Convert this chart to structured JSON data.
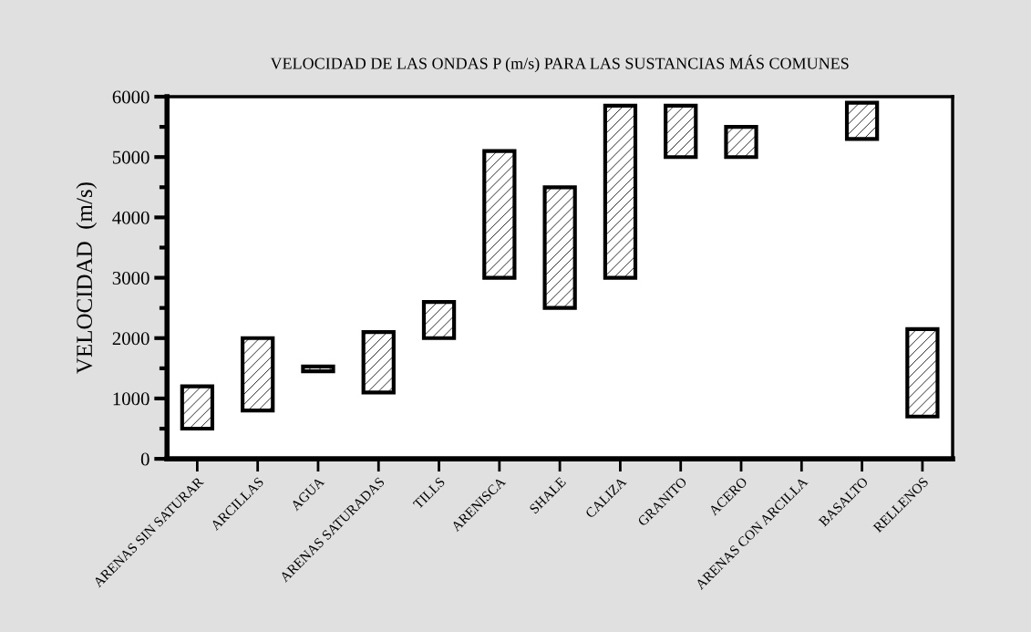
{
  "chart_data": {
    "type": "bar",
    "title": "VELOCIDAD DE LAS ONDAS P (m/s) PARA LAS SUSTANCIAS MÁS COMUNES",
    "ylabel": "VELOCIDAD  (m/s)",
    "categories": [
      "ARENAS SIN SATURAR",
      "ARCILLAS",
      "AGUA",
      "ARENAS SATURADAS",
      "TILLS",
      "ARENISCA",
      "SHALE",
      "CALIZA",
      "GRANITO",
      "ACERO",
      "ARENAS CON ARCILLA",
      "BASALTO",
      "RELLENOS"
    ],
    "base": [
      500,
      800,
      1450,
      1100,
      2000,
      3000,
      2500,
      3000,
      5000,
      5000,
      null,
      5300,
      700
    ],
    "values": [
      700,
      1200,
      80,
      1000,
      600,
      2100,
      2000,
      2850,
      850,
      500,
      null,
      600,
      1450
    ],
    "color": "#000000",
    "ylim": [
      0,
      6000
    ],
    "yticks": [
      0,
      1000,
      2000,
      3000,
      4000,
      5000,
      6000
    ],
    "grid": false,
    "legend": false
  }
}
